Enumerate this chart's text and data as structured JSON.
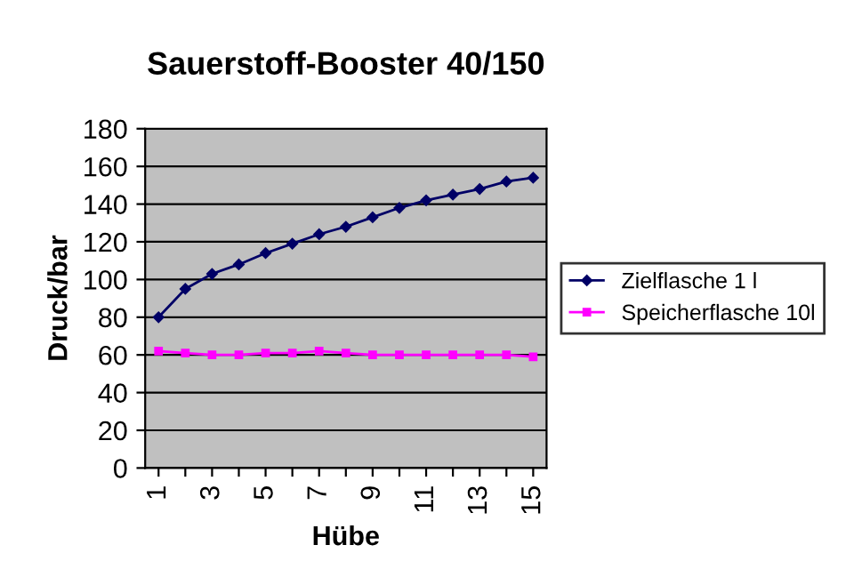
{
  "chart_data": {
    "type": "line",
    "title": "Sauerstoff-Booster 40/150",
    "xlabel": "Hübe",
    "ylabel": "Druck/bar",
    "categories": [
      "1",
      null,
      "3",
      null,
      "5",
      null,
      "7",
      null,
      "9",
      null,
      "11",
      null,
      "13",
      null,
      "15"
    ],
    "series": [
      {
        "name": "Zielflasche 1 l",
        "color": "#000066",
        "marker": "diamond",
        "values": [
          80,
          95,
          103,
          108,
          114,
          119,
          124,
          128,
          133,
          138,
          142,
          145,
          148,
          152,
          154
        ]
      },
      {
        "name": "Speicherflasche 10l",
        "color": "#ff00ff",
        "marker": "square",
        "values": [
          62,
          61,
          60,
          60,
          61,
          61,
          62,
          61,
          60,
          60,
          60,
          60,
          60,
          60,
          59
        ]
      }
    ],
    "ylim": [
      0,
      180
    ],
    "yticks": [
      0,
      20,
      40,
      60,
      80,
      100,
      120,
      140,
      160,
      180
    ],
    "grid": "y",
    "legend": "right",
    "line_style": "solid"
  }
}
